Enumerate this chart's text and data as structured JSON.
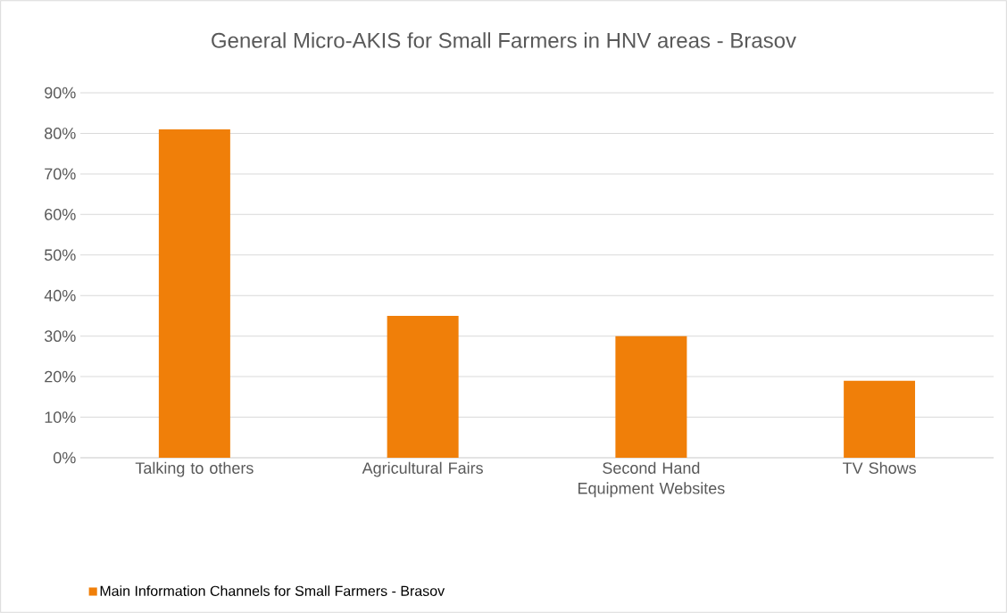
{
  "chart_data": {
    "type": "bar",
    "title": "General Micro-AKIS for Small Farmers in HNV areas - Brasov",
    "categories": [
      "Talking to others",
      "Agricultural Fairs",
      "Second Hand Equipment Websites",
      "TV Shows"
    ],
    "series": [
      {
        "name": "Main Information Channels for Small Farmers - Brasov",
        "color": "#f07f09",
        "values": [
          81,
          35,
          30,
          19
        ]
      }
    ],
    "ylim": [
      0,
      90
    ],
    "yticks": [
      {
        "value": 0,
        "label": "0%"
      },
      {
        "value": 10,
        "label": "10%"
      },
      {
        "value": 20,
        "label": "20%"
      },
      {
        "value": 30,
        "label": "30%"
      },
      {
        "value": 40,
        "label": "40%"
      },
      {
        "value": 50,
        "label": "50%"
      },
      {
        "value": 60,
        "label": "60%"
      },
      {
        "value": 70,
        "label": "70%"
      },
      {
        "value": 80,
        "label": "80%"
      },
      {
        "value": 90,
        "label": "90%"
      }
    ],
    "grid": "y",
    "legend": "bottom left"
  }
}
